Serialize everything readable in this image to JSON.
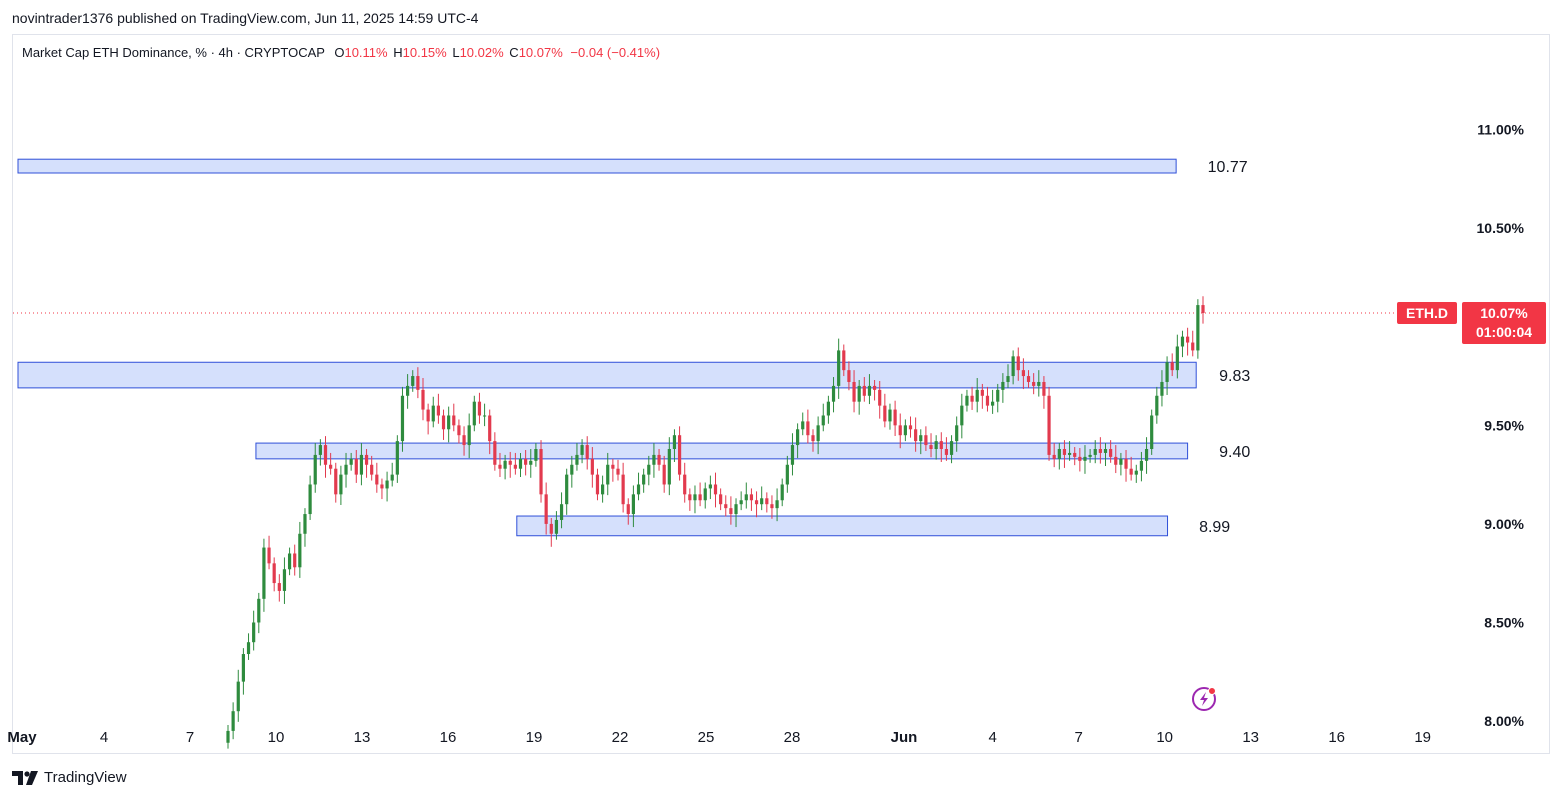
{
  "header": {
    "published_by": "novintrader1376 published on TradingView.com, Jun 11, 2025 14:59 UTC-4"
  },
  "legend": {
    "title": "Market Cap ETH Dominance, % · 4h · CRYPTOCAP",
    "o_label": "O",
    "o_value": "10.11%",
    "h_label": "H",
    "h_value": "10.15%",
    "l_label": "L",
    "l_value": "10.02%",
    "c_label": "C",
    "c_value": "10.07%",
    "change": "−0.04 (−0.41%)"
  },
  "price_tag": {
    "symbol": "ETH.D",
    "price": "10.07%",
    "countdown": "01:00:04"
  },
  "footer": {
    "brand": "TradingView"
  },
  "colors": {
    "up": "#2e8b3e",
    "down": "#e23a4e",
    "zone_fill": "#d3defc",
    "zone_border": "#2f4fd8",
    "tag_red": "#f23645"
  },
  "chart_data": {
    "type": "candlestick",
    "y_axis": {
      "range": [
        7.98,
        11.48
      ],
      "ticks": [
        11.0,
        10.5,
        10.0,
        9.5,
        9.0,
        8.5,
        8.0
      ],
      "tick_labels": [
        "11.00%",
        "10.50%",
        "10.00%",
        "9.50%",
        "9.00%",
        "8.50%",
        "8.00%"
      ],
      "display_hidden_tick": "10.00"
    },
    "x_axis": {
      "unit": "day",
      "range_day": [
        1,
        20.5
      ],
      "ticks": [
        {
          "day": 1,
          "label": "May"
        },
        {
          "day": 4,
          "label": "4"
        },
        {
          "day": 7,
          "label": "7"
        },
        {
          "day": 10,
          "label": "10"
        },
        {
          "day": 13,
          "label": "13"
        },
        {
          "day": 16,
          "label": "16"
        },
        {
          "day": 19,
          "label": "19"
        },
        {
          "day": 22,
          "label": "22"
        },
        {
          "day": 25,
          "label": "25"
        },
        {
          "day": 28,
          "label": "28"
        },
        {
          "day": 32,
          "label": "Jun"
        },
        {
          "day": 35,
          "label": "4"
        },
        {
          "day": 38,
          "label": "7"
        },
        {
          "day": 41,
          "label": "10"
        },
        {
          "day": 44,
          "label": "13"
        },
        {
          "day": 47,
          "label": "16"
        },
        {
          "day": 50,
          "label": "19"
        }
      ]
    },
    "zones": [
      {
        "label": "10.77",
        "top": 10.85,
        "bottom": 10.78,
        "start_day": 1.0,
        "end_day": 41.4,
        "label_day": 42.5
      },
      {
        "label": "9.83",
        "top": 9.82,
        "bottom": 9.69,
        "start_day": 1.0,
        "end_day": 42.1,
        "label_day": 42.9
      },
      {
        "label": "9.40",
        "top": 9.41,
        "bottom": 9.33,
        "start_day": 9.3,
        "end_day": 41.8,
        "label_day": 42.9
      },
      {
        "label": "8.99",
        "top": 9.04,
        "bottom": 8.94,
        "start_day": 18.4,
        "end_day": 41.1,
        "label_day": 42.2
      }
    ],
    "last_price": 10.07,
    "candles_close": [
      7.95,
      8.05,
      8.2,
      8.34,
      8.4,
      8.5,
      8.62,
      8.88,
      8.8,
      8.7,
      8.66,
      8.77,
      8.85,
      8.78,
      8.95,
      9.05,
      9.2,
      9.35,
      9.4,
      9.3,
      9.28,
      9.15,
      9.25,
      9.3,
      9.33,
      9.25,
      9.35,
      9.3,
      9.25,
      9.2,
      9.18,
      9.22,
      9.25,
      9.42,
      9.65,
      9.7,
      9.75,
      9.68,
      9.58,
      9.52,
      9.6,
      9.55,
      9.48,
      9.55,
      9.5,
      9.45,
      9.4,
      9.5,
      9.62,
      9.55,
      9.55,
      9.42,
      9.3,
      9.28,
      9.32,
      9.3,
      9.28,
      9.33,
      9.3,
      9.32,
      9.38,
      9.15,
      9.0,
      8.95,
      9.02,
      9.1,
      9.25,
      9.3,
      9.35,
      9.4,
      9.33,
      9.25,
      9.15,
      9.2,
      9.3,
      9.28,
      9.25,
      9.1,
      9.05,
      9.15,
      9.2,
      9.25,
      9.3,
      9.35,
      9.3,
      9.2,
      9.38,
      9.45,
      9.25,
      9.15,
      9.12,
      9.15,
      9.12,
      9.18,
      9.2,
      9.15,
      9.1,
      9.08,
      9.05,
      9.1,
      9.12,
      9.15,
      9.12,
      9.1,
      9.13,
      9.1,
      9.08,
      9.12,
      9.2,
      9.3,
      9.4,
      9.48,
      9.52,
      9.45,
      9.42,
      9.5,
      9.55,
      9.62,
      9.7,
      9.88,
      9.78,
      9.72,
      9.62,
      9.7,
      9.65,
      9.7,
      9.68,
      9.6,
      9.52,
      9.58,
      9.5,
      9.45,
      9.5,
      9.48,
      9.42,
      9.45,
      9.4,
      9.38,
      9.42,
      9.38,
      9.35,
      9.42,
      9.5,
      9.6,
      9.65,
      9.62,
      9.68,
      9.65,
      9.6,
      9.62,
      9.68,
      9.72,
      9.75,
      9.85,
      9.78,
      9.75,
      9.72,
      9.7,
      9.72,
      9.65,
      9.35,
      9.33,
      9.38,
      9.35,
      9.36,
      9.34,
      9.32,
      9.34,
      9.35,
      9.38,
      9.36,
      9.38,
      9.34,
      9.3,
      9.33,
      9.28,
      9.25,
      9.27,
      9.32,
      9.38,
      9.55,
      9.65,
      9.72,
      9.82,
      9.78,
      9.9,
      9.95,
      9.92,
      9.88,
      10.11,
      10.07
    ]
  }
}
